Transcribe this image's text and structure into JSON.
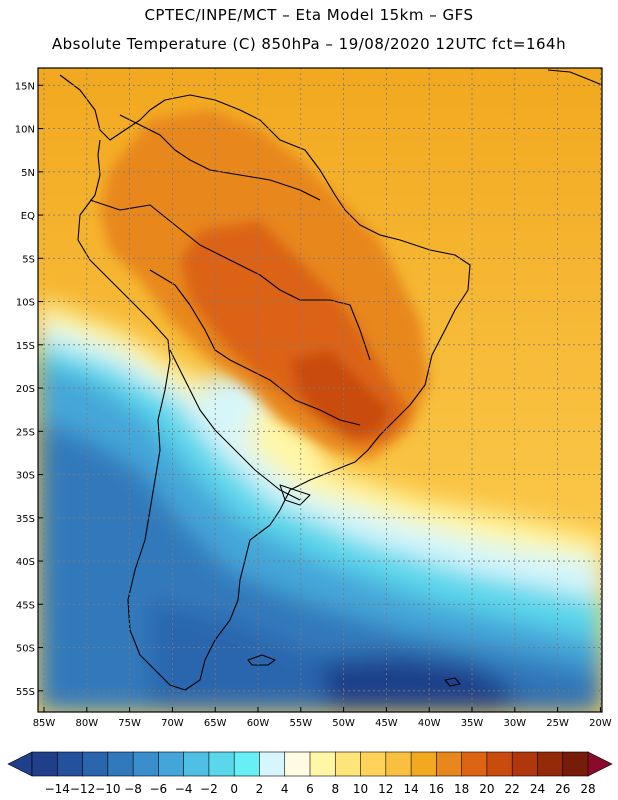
{
  "header": {
    "title_line1": "CPTEC/INPE/MCT –  Eta Model 15km – GFS",
    "title_line2": "Absolute Temperature (C) 850hPa – 19/08/2020 12UTC fct=164h"
  },
  "map": {
    "lat_labels": [
      "15N",
      "10N",
      "5N",
      "EQ",
      "5S",
      "10S",
      "15S",
      "20S",
      "25S",
      "30S",
      "35S",
      "40S",
      "45S",
      "50S",
      "55S"
    ],
    "lon_labels": [
      "85W",
      "80W",
      "75W",
      "70W",
      "65W",
      "60W",
      "55W",
      "50W",
      "45W",
      "40W",
      "35W",
      "30W",
      "25W",
      "20W"
    ]
  },
  "colorbar": {
    "labels": [
      "-14",
      "-12",
      "-10",
      "-8",
      "-6",
      "-4",
      "-2",
      "0",
      "2",
      "4",
      "6",
      "8",
      "10",
      "12",
      "14",
      "16",
      "18",
      "20",
      "22",
      "24",
      "26",
      "28"
    ],
    "colors": [
      "#1f3f8a",
      "#23519c",
      "#2a66ae",
      "#3179bb",
      "#3a8ecb",
      "#44a6d8",
      "#4fbfe3",
      "#5bd7ec",
      "#66f0f6",
      "#d6f6fb",
      "#fffbe3",
      "#fff7a6",
      "#ffe57a",
      "#ffd35a",
      "#f8c03e",
      "#f2a81f",
      "#e8871c",
      "#dc6412",
      "#c94b0e",
      "#b0370c",
      "#932a0a",
      "#761c08"
    ],
    "low_color": "#1f3f8a",
    "high_color": "#8a0a2a"
  }
}
